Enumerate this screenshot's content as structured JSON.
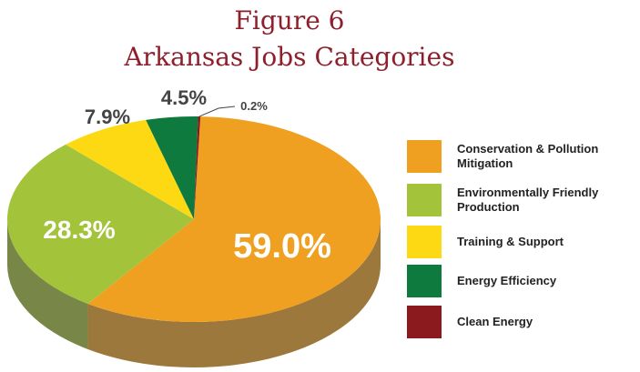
{
  "chart_data": {
    "type": "pie3d",
    "title": "Figure 6",
    "subtitle": "Arkansas Jobs Categories",
    "categories": [
      "Conservation & Pollution Mitigation",
      "Environmentally Friendly Production",
      "Training & Support",
      "Energy Efficiency",
      "Clean Energy"
    ],
    "values": [
      59.0,
      28.3,
      7.9,
      4.5,
      0.2
    ],
    "value_labels": [
      "59.0%",
      "28.3%",
      "7.9%",
      "4.5%",
      "0.2%"
    ],
    "colors": [
      "#f0a020",
      "#a3c43a",
      "#fcd912",
      "#0f7a3e",
      "#8b1a1f"
    ],
    "legend": "right"
  }
}
